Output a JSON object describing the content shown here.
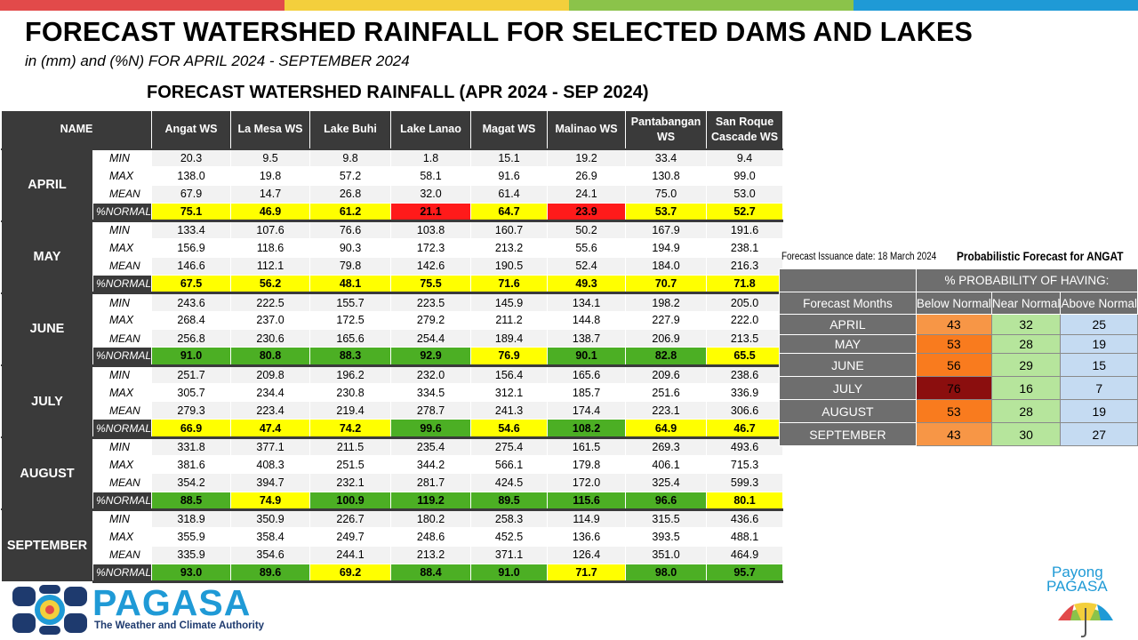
{
  "colors": {
    "top_bar": [
      "#e24a4a",
      "#f3cf3c",
      "#8bc34a",
      "#1f9ad6"
    ],
    "header_bg": "#3a3a3a",
    "yellow": "#ffff00",
    "red": "#ff1a1a",
    "green": "#4caf24",
    "probability_below": [
      "#f79646",
      "#f97b1e",
      "#8b0e0e"
    ],
    "probability_near": "#b6e59c",
    "probability_above": "#c5dbf2"
  },
  "title": "FORECAST WATERSHED RAINFALL FOR SELECTED DAMS AND LAKES",
  "subtitle": "in (mm) and (%N) FOR APRIL 2024 - SEPTEMBER 2024",
  "table_title": "FORECAST WATERSHED RAINFALL (APR 2024 - SEP 2024)",
  "table": {
    "name_header": "NAME",
    "columns": [
      "Angat WS",
      "La Mesa WS",
      "Lake Buhi",
      "Lake Lanao",
      "Magat WS",
      "Malinao WS",
      "Pantabangan WS",
      "San Roque Cascade WS"
    ],
    "stat_labels": [
      "MIN",
      "MAX",
      "MEAN",
      "%NORMAL"
    ],
    "months": [
      {
        "name": "APRIL",
        "min": [
          "20.3",
          "9.5",
          "9.8",
          "1.8",
          "15.1",
          "19.2",
          "33.4",
          "9.4"
        ],
        "max": [
          "138.0",
          "19.8",
          "57.2",
          "58.1",
          "91.6",
          "26.9",
          "130.8",
          "99.0"
        ],
        "mean": [
          "67.9",
          "14.7",
          "26.8",
          "32.0",
          "61.4",
          "24.1",
          "75.0",
          "53.0"
        ],
        "pnormal": [
          "75.1",
          "46.9",
          "61.2",
          "21.1",
          "64.7",
          "23.9",
          "53.7",
          "52.7"
        ],
        "pnormal_colors": [
          "yellow",
          "yellow",
          "yellow",
          "red",
          "yellow",
          "red",
          "yellow",
          "yellow"
        ]
      },
      {
        "name": "MAY",
        "min": [
          "133.4",
          "107.6",
          "76.6",
          "103.8",
          "160.7",
          "50.2",
          "167.9",
          "191.6"
        ],
        "max": [
          "156.9",
          "118.6",
          "90.3",
          "172.3",
          "213.2",
          "55.6",
          "194.9",
          "238.1"
        ],
        "mean": [
          "146.6",
          "112.1",
          "79.8",
          "142.6",
          "190.5",
          "52.4",
          "184.0",
          "216.3"
        ],
        "pnormal": [
          "67.5",
          "56.2",
          "48.1",
          "75.5",
          "71.6",
          "49.3",
          "70.7",
          "71.8"
        ],
        "pnormal_colors": [
          "yellow",
          "yellow",
          "yellow",
          "yellow",
          "yellow",
          "yellow",
          "yellow",
          "yellow"
        ]
      },
      {
        "name": "JUNE",
        "min": [
          "243.6",
          "222.5",
          "155.7",
          "223.5",
          "145.9",
          "134.1",
          "198.2",
          "205.0"
        ],
        "max": [
          "268.4",
          "237.0",
          "172.5",
          "279.2",
          "211.2",
          "144.8",
          "227.9",
          "222.0"
        ],
        "mean": [
          "256.8",
          "230.6",
          "165.6",
          "254.4",
          "189.4",
          "138.7",
          "206.9",
          "213.5"
        ],
        "pnormal": [
          "91.0",
          "80.8",
          "88.3",
          "92.9",
          "76.9",
          "90.1",
          "82.8",
          "65.5"
        ],
        "pnormal_colors": [
          "green",
          "green",
          "green",
          "green",
          "yellow",
          "green",
          "green",
          "yellow"
        ]
      },
      {
        "name": "JULY",
        "min": [
          "251.7",
          "209.8",
          "196.2",
          "232.0",
          "156.4",
          "165.6",
          "209.6",
          "238.6"
        ],
        "max": [
          "305.7",
          "234.4",
          "230.8",
          "334.5",
          "312.1",
          "185.7",
          "251.6",
          "336.9"
        ],
        "mean": [
          "279.3",
          "223.4",
          "219.4",
          "278.7",
          "241.3",
          "174.4",
          "223.1",
          "306.6"
        ],
        "pnormal": [
          "66.9",
          "47.4",
          "74.2",
          "99.6",
          "54.6",
          "108.2",
          "64.9",
          "46.7"
        ],
        "pnormal_colors": [
          "yellow",
          "yellow",
          "yellow",
          "green",
          "yellow",
          "green",
          "yellow",
          "yellow"
        ]
      },
      {
        "name": "AUGUST",
        "min": [
          "331.8",
          "377.1",
          "211.5",
          "235.4",
          "275.4",
          "161.5",
          "269.3",
          "493.6"
        ],
        "max": [
          "381.6",
          "408.3",
          "251.5",
          "344.2",
          "566.1",
          "179.8",
          "406.1",
          "715.3"
        ],
        "mean": [
          "354.2",
          "394.7",
          "232.1",
          "281.7",
          "424.5",
          "172.0",
          "325.4",
          "599.3"
        ],
        "pnormal": [
          "88.5",
          "74.9",
          "100.9",
          "119.2",
          "89.5",
          "115.6",
          "96.6",
          "80.1"
        ],
        "pnormal_colors": [
          "green",
          "yellow",
          "green",
          "green",
          "green",
          "green",
          "green",
          "yellow"
        ]
      },
      {
        "name": "SEPTEMBER",
        "min": [
          "318.9",
          "350.9",
          "226.7",
          "180.2",
          "258.3",
          "114.9",
          "315.5",
          "436.6"
        ],
        "max": [
          "355.9",
          "358.4",
          "249.7",
          "248.6",
          "452.5",
          "136.6",
          "393.5",
          "488.1"
        ],
        "mean": [
          "335.9",
          "354.6",
          "244.1",
          "213.2",
          "371.1",
          "126.4",
          "351.0",
          "464.9"
        ],
        "pnormal": [
          "93.0",
          "89.6",
          "69.2",
          "88.4",
          "91.0",
          "71.7",
          "98.0",
          "95.7"
        ],
        "pnormal_colors": [
          "green",
          "green",
          "yellow",
          "green",
          "green",
          "yellow",
          "green",
          "green"
        ]
      }
    ]
  },
  "probabilistic": {
    "issuance": "Forecast Issuance date: 18 March 2024",
    "title": "Probabilistic Forecast for ANGAT",
    "group_header": "% PROBABILITY  OF HAVING:",
    "months_header": "Forecast Months",
    "col_headers": [
      "Below Normal",
      "Near Normal",
      "Above Normal"
    ],
    "rows": [
      {
        "month": "APRIL",
        "below": "43",
        "near": "32",
        "above": "25",
        "below_color": "#f79646"
      },
      {
        "month": "MAY",
        "below": "53",
        "near": "28",
        "above": "19",
        "below_color": "#f97b1e"
      },
      {
        "month": "JUNE",
        "below": "56",
        "near": "29",
        "above": "15",
        "below_color": "#f97b1e"
      },
      {
        "month": "JULY",
        "below": "76",
        "near": "16",
        "above": "7",
        "below_color": "#8b0e0e"
      },
      {
        "month": "AUGUST",
        "below": "53",
        "near": "28",
        "above": "19",
        "below_color": "#f97b1e"
      },
      {
        "month": "SEPTEMBER",
        "below": "43",
        "near": "30",
        "above": "27",
        "below_color": "#f79646"
      }
    ]
  },
  "branding": {
    "logo_text": "PAGASA",
    "tagline": "The Weather and Climate Authority",
    "payong_line1": "Payong",
    "payong_line2": "PAGASA"
  }
}
